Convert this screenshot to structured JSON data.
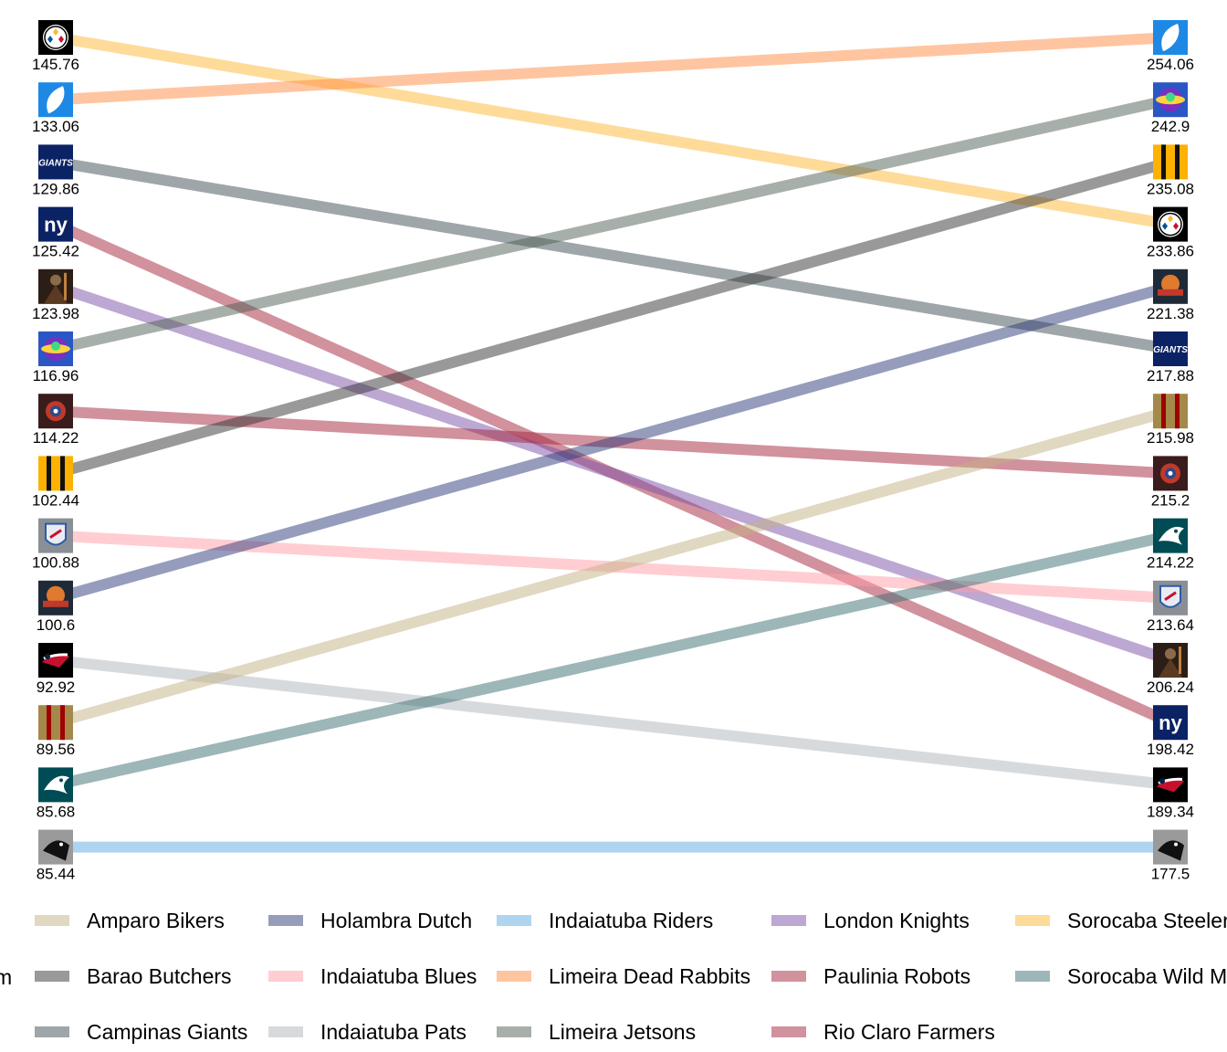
{
  "chart_data": {
    "type": "slope",
    "legend_title": "m",
    "legend_position": "bottom",
    "series": [
      {
        "name": "Sorocaba Steelers",
        "logo": "steelers-logo",
        "color": "#FDB833",
        "start": 145.76,
        "end": 233.86
      },
      {
        "name": "Limeira Dead Rabbits",
        "logo": "white-feather-logo",
        "color": "#FF8C42",
        "start": 133.06,
        "end": 254.06
      },
      {
        "name": "Campinas Giants",
        "logo": "giants-wordmark-logo",
        "color": "#3E4E54",
        "start": 129.86,
        "end": 217.88
      },
      {
        "name": "Rio Claro Farmers",
        "logo": "ny-monogram-logo",
        "color": "#A4243B",
        "start": 125.42,
        "end": 198.42
      },
      {
        "name": "London Knights",
        "logo": "dark-knight-logo",
        "color": "#7B4FA8",
        "start": 123.98,
        "end": 206.24
      },
      {
        "name": "Limeira Jetsons",
        "logo": "jetsons-logo",
        "color": "#4F5F55",
        "start": 116.96,
        "end": 242.9
      },
      {
        "name": "Paulinia Robots",
        "logo": "robot-logo",
        "color": "#A4243B",
        "start": 114.22,
        "end": 215.2
      },
      {
        "name": "Barao Butchers",
        "logo": "yellow-black-stripes-logo",
        "color": "#333333",
        "start": 102.44,
        "end": 235.08
      },
      {
        "name": "Indaiatuba Blues",
        "logo": "blues-shield-logo",
        "color": "#FF9BA6",
        "start": 100.88,
        "end": 213.64
      },
      {
        "name": "Holambra Dutch",
        "logo": "holambra-dutch-logo",
        "color": "#2E3A78",
        "start": 100.6,
        "end": 221.38
      },
      {
        "name": "Indaiatuba Pats",
        "logo": "patriots-logo",
        "color": "#B0B6BC",
        "start": 92.92,
        "end": 189.34
      },
      {
        "name": "Amparo Bikers",
        "logo": "red-gold-stripes-logo",
        "color": "#C4B183",
        "start": 89.56,
        "end": 215.98
      },
      {
        "name": "Sorocaba Wild Mustangs",
        "logo": "eagle-logo",
        "color": "#3C6E71",
        "start": 85.68,
        "end": 214.22
      },
      {
        "name": "Indaiatuba Riders",
        "logo": "panther-logo",
        "color": "#5DA9E0",
        "start": 85.44,
        "end": 177.5
      }
    ],
    "legend_order": [
      "Amparo Bikers",
      "Barao Butchers",
      "Campinas Giants",
      "Holambra Dutch",
      "Indaiatuba Blues",
      "Indaiatuba Pats",
      "Indaiatuba Riders",
      "Limeira Dead Rabbits",
      "Limeira Jetsons",
      "London Knights",
      "Paulinia Robots",
      "Rio Claro Farmers",
      "Sorocaba Steelers",
      "Sorocaba Wild Mustangs"
    ]
  }
}
